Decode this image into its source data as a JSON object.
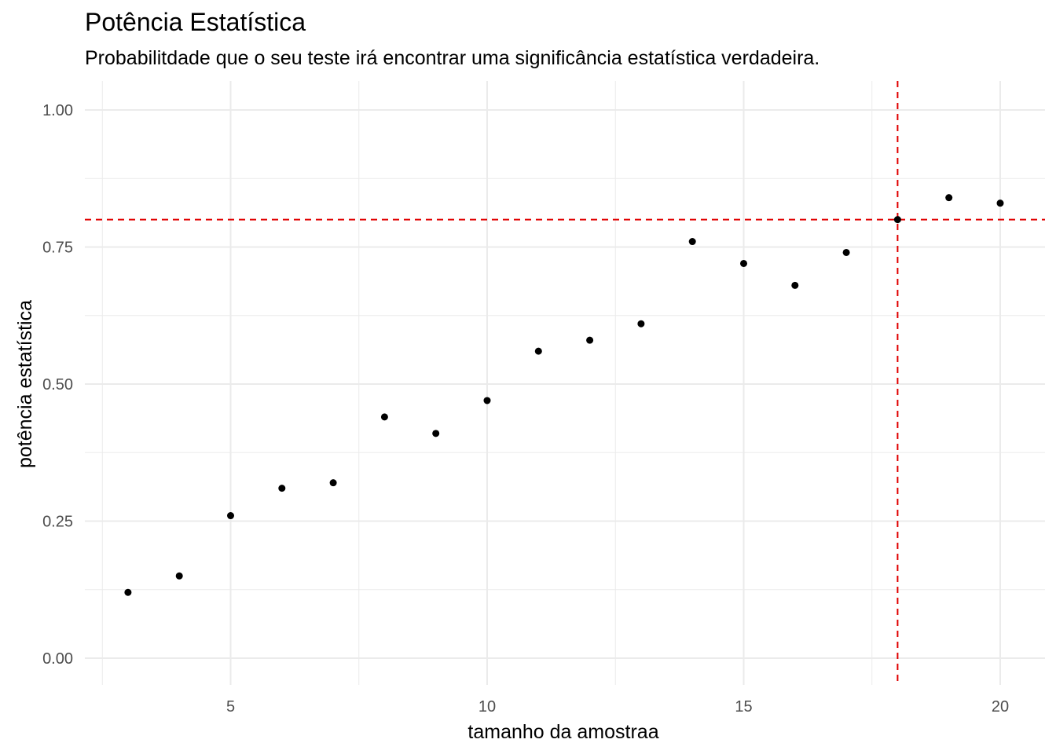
{
  "chart_data": {
    "type": "scatter",
    "title": "Potência Estatística",
    "subtitle": "Probabilitdade que o seu teste irá encontrar uma significância estatística verdadeira.",
    "xlabel": "tamanho da amostraa",
    "ylabel": "potência estatística",
    "xlim": [
      2.5,
      20.8
    ],
    "ylim": [
      -0.05,
      1.05
    ],
    "x_ticks": [
      5,
      10,
      15,
      20
    ],
    "x_tick_labels": [
      "5",
      "10",
      "15",
      "20"
    ],
    "y_ticks": [
      0,
      0.25,
      0.5,
      0.75,
      1.0
    ],
    "y_tick_labels": [
      "0.00",
      "0.25",
      "0.50",
      "0.75",
      "1.00"
    ],
    "x_minor": [
      2.5,
      7.5,
      12.5,
      17.5
    ],
    "y_minor": [
      0.125,
      0.375,
      0.625,
      0.875
    ],
    "grid": true,
    "points": [
      {
        "x": 3,
        "y": 0.12
      },
      {
        "x": 4,
        "y": 0.15
      },
      {
        "x": 5,
        "y": 0.26
      },
      {
        "x": 6,
        "y": 0.31
      },
      {
        "x": 7,
        "y": 0.32
      },
      {
        "x": 8,
        "y": 0.44
      },
      {
        "x": 9,
        "y": 0.41
      },
      {
        "x": 10,
        "y": 0.47
      },
      {
        "x": 11,
        "y": 0.56
      },
      {
        "x": 12,
        "y": 0.58
      },
      {
        "x": 13,
        "y": 0.61
      },
      {
        "x": 14,
        "y": 0.76
      },
      {
        "x": 15,
        "y": 0.72
      },
      {
        "x": 16,
        "y": 0.68
      },
      {
        "x": 17,
        "y": 0.74
      },
      {
        "x": 18,
        "y": 0.8
      },
      {
        "x": 19,
        "y": 0.84
      },
      {
        "x": 20,
        "y": 0.83
      }
    ],
    "hline": 0.8,
    "vline": 18,
    "reference_line_color": "#e00000",
    "point_color": "#000000",
    "grid_color": "#ebebeb"
  }
}
